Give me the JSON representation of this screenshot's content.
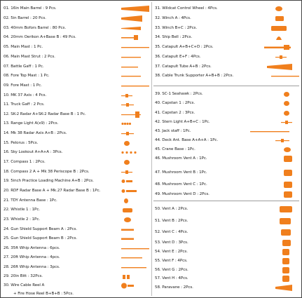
{
  "accent_color": "#f07f1d",
  "parts_left": [
    "01. 16in Main Barrel : 9 Pcs.",
    "02. 5in Barrel : 20 Pcs.",
    "03. 40mm Bofors Barrel : 80 Pcs.",
    "04. 20mm Oerikon A+Base B : 49 Pcs.",
    "05. Main Mast : 1 Pc.",
    "06. Main Mast Strut : 2 Pcs.",
    "07. Battle Gaff : 1 Pc.",
    "08. Fore Top Mast : 1 Pc.",
    "09. Fore  Mast : 1 Pc.",
    "10. MK 37 Axis : 4 Pcs.",
    "11. Truck Gaff : 2 Pcs.",
    "12. SK-2 Radar A+SK-2 Radar Base B : 1 Pc.",
    "13. Range Light A(x9) : 2Pcs.",
    "14. Mk 38 Radar Axis A+B : 2Pcs.",
    "15. Pelorus : 5Pcs.",
    "16. Sky Lookout A+A+A : 3Pcs.",
    "17. Compass 1 : 2Pcs.",
    "18. Compass 2 A + Mk 38 Periscope B : 2Pcs.",
    "19. 5inch Practice Loading Machine A+B : 2Pcs.",
    "20. RDF Radar Base A + Mk.27 Radar Base B : 1Pc.",
    "21. TDY Antenna Base : 1Pc.",
    "22. Whistle 1 : 1Pc.",
    "23. Whistle 2 : 1Pc.",
    "24. Gun Shield Support Beam A : 2Pcs.",
    "25. Gun Shield Support Beam B : 2Pcs.",
    "26. 35ft Whip Antenna : 6pcs.",
    "27. 20ft Whip Antenna : 4pcs.",
    "28. 26ft Whip Antenna : 3pcs.",
    "29. 20in Bitt : 32Pcs.",
    "30. Wire Cable Reel A",
    "+ Fire Hose Reel B+B+B : 5Pcs."
  ],
  "parts_right": [
    "31. Wildcat Control Wheel : 4Pcs.",
    "32. Winch A : 4Pcs.",
    "33. Winch B+C : 2Pcs.",
    "34. Ship Bell : 2Pcs.",
    "35. Catapult A+B+C+D : 2Pcs.",
    "36. Catapult E+F : 4Pcs.",
    "37. Catapult Tube A+B : 2Pcs.",
    "38. Cable Trunk Supporter A+B+B : 2Pcs.",
    "39. SC-1 Seahawk : 2Pcs.",
    "40. Capstan 1 : 2Pcs.",
    "41. Capstan 2 : 3Pcs.",
    "42. Stern Light A+B+C : 1Pc.",
    "43. Jack staff : 1Pc.",
    "44. Deck Ant. Base A+A+A : 1Pc.",
    "45. Crane Base : 1Pc.",
    "46. Mushroom Vent A : 1Pc.",
    "47. Mushroom Vent B : 1Pc.",
    "48. Mushroom Vent C : 1Pc.",
    "49. Mushroom Vent D : 2Pcs.",
    "50. Vent A : 2Pcs.",
    "51. Vent B : 2Pcs.",
    "52. Vent C : 4Pcs.",
    "53. Vent D : 3Pcs.",
    "54. Vent E : 2Pcs.",
    "55. Vent F : 4Pcs.",
    "56. Vent G : 2Pcs.",
    "57. Vent H : 4Pcs.",
    "58. Paravane : 2Pcs."
  ]
}
